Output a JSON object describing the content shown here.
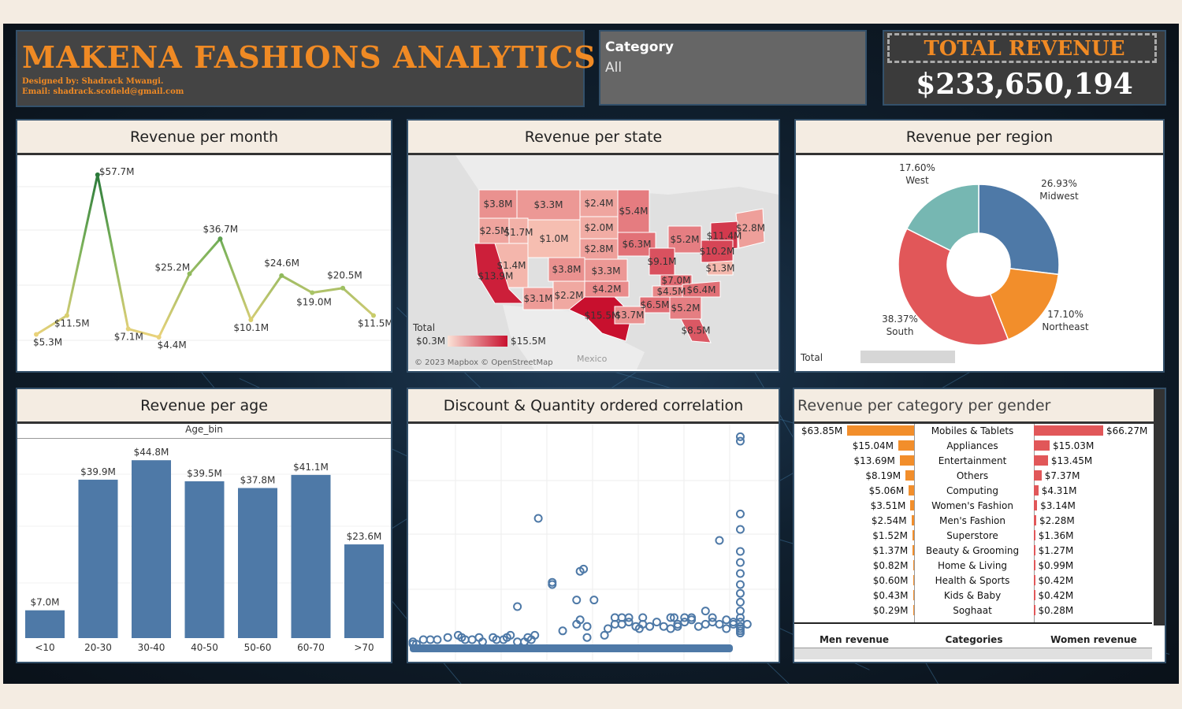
{
  "header": {
    "title": "MAKENA FASHIONS  ANALYTICS",
    "designed_by": "Designed by: Shadrack Mwangi.",
    "email": "Email: shadrack.scofield@gmail.com"
  },
  "filter": {
    "label": "Category",
    "value": "All"
  },
  "kpi": {
    "label": "TOTAL REVENUE",
    "value": "$233,650,194"
  },
  "month_panel": {
    "title": "Revenue per month",
    "chart_data": {
      "type": "line",
      "values": [
        5.3,
        11.5,
        57.7,
        7.1,
        4.4,
        25.2,
        36.7,
        10.1,
        24.6,
        19.0,
        20.5,
        11.5
      ],
      "labels": [
        "$5.3M",
        "$11.5M",
        "$57.7M",
        "$7.1M",
        "$4.4M",
        "$25.2M",
        "$36.7M",
        "$10.1M",
        "$24.6M",
        "$19.0M",
        "$20.5M",
        "$11.5M"
      ],
      "ylim": [
        0,
        60
      ]
    }
  },
  "state_panel": {
    "title": "Revenue per state",
    "state_labels": [
      "$3.8M",
      "$3.3M",
      "$2.4M",
      "$5.4M",
      "$2.8M",
      "$2.5M",
      "$1.7M",
      "$1.0M",
      "$2.0M",
      "$5.2M",
      "$11.4M",
      "$6.3M",
      "$2.8M",
      "$10.2M",
      "$9.1M",
      "$1.4M",
      "$3.8M",
      "$3.3M",
      "$1.3M",
      "$7.0M",
      "$13.9M",
      "$4.2M",
      "$4.5M",
      "$6.4M",
      "$3.1M",
      "$2.2M",
      "$6.5M",
      "$15.5M",
      "$3.7M",
      "$5.2M",
      "$8.5M"
    ],
    "legend_title": "Total",
    "legend_min": "$0.3M",
    "legend_max": "$15.5M",
    "attribution": "© 2023 Mapbox © OpenStreetMap",
    "mexico": "Mexico"
  },
  "region_panel": {
    "title": "Revenue per region",
    "chart_data": {
      "type": "pie",
      "slices": [
        {
          "name": "Midwest",
          "pct": 26.93,
          "label": "26.93%",
          "color": "#4e79a7"
        },
        {
          "name": "Northeast",
          "pct": 17.1,
          "label": "17.10%",
          "color": "#f28e2b"
        },
        {
          "name": "South",
          "pct": 38.37,
          "label": "38.37%",
          "color": "#e15759"
        },
        {
          "name": "West",
          "pct": 17.6,
          "label": "17.60%",
          "color": "#76b7b2"
        }
      ]
    },
    "legend_label": "Total"
  },
  "age_panel": {
    "title": "Revenue per age",
    "chart_data": {
      "type": "bar",
      "header": "Age_bin",
      "categories": [
        "<10",
        "20-30",
        "30-40",
        "40-50",
        "50-60",
        "60-70",
        ">70"
      ],
      "values": [
        7.0,
        39.9,
        44.8,
        39.5,
        37.8,
        41.1,
        23.6
      ],
      "labels": [
        "$7.0M",
        "$39.9M",
        "$44.8M",
        "$39.5M",
        "$37.8M",
        "$41.1M",
        "$23.6M"
      ],
      "ylim": [
        0,
        50
      ],
      "color": "#4e79a7"
    }
  },
  "scatter_panel": {
    "title": "Discount & Quantity ordered correlation",
    "chart_data": {
      "type": "scatter",
      "color": "#4e79a7",
      "xlim": [
        0,
        100
      ],
      "ylim": [
        0,
        100
      ],
      "points": [
        [
          0,
          3
        ],
        [
          0,
          4
        ],
        [
          1,
          3
        ],
        [
          3,
          5
        ],
        [
          5,
          5
        ],
        [
          7,
          5
        ],
        [
          10,
          6
        ],
        [
          13,
          7
        ],
        [
          14,
          6
        ],
        [
          15,
          5
        ],
        [
          17,
          5
        ],
        [
          19,
          6
        ],
        [
          20,
          4
        ],
        [
          23,
          6
        ],
        [
          24,
          5
        ],
        [
          26,
          5
        ],
        [
          27,
          6
        ],
        [
          28,
          7
        ],
        [
          30,
          4
        ],
        [
          32,
          4
        ],
        [
          33,
          6
        ],
        [
          30,
          20
        ],
        [
          34,
          5
        ],
        [
          35,
          7
        ],
        [
          36,
          60
        ],
        [
          40,
          30
        ],
        [
          40,
          31
        ],
        [
          43,
          9
        ],
        [
          47,
          12
        ],
        [
          48,
          14
        ],
        [
          47,
          23
        ],
        [
          48,
          36
        ],
        [
          49,
          37
        ],
        [
          50,
          6
        ],
        [
          52,
          23
        ],
        [
          50,
          11
        ],
        [
          55,
          7
        ],
        [
          56,
          10
        ],
        [
          58,
          12
        ],
        [
          60,
          12
        ],
        [
          62,
          13
        ],
        [
          64,
          11
        ],
        [
          65,
          10
        ],
        [
          66,
          12
        ],
        [
          68,
          11
        ],
        [
          70,
          13
        ],
        [
          72,
          11
        ],
        [
          74,
          10
        ],
        [
          76,
          11
        ],
        [
          78,
          13
        ],
        [
          80,
          14
        ],
        [
          82,
          11
        ],
        [
          84,
          12
        ],
        [
          86,
          13
        ],
        [
          88,
          12
        ],
        [
          90,
          10
        ],
        [
          92,
          12
        ],
        [
          84,
          18
        ],
        [
          88,
          50
        ],
        [
          94,
          8
        ],
        [
          94,
          9
        ],
        [
          94,
          10
        ],
        [
          94,
          11
        ],
        [
          94,
          13
        ],
        [
          94,
          15
        ],
        [
          94,
          18
        ],
        [
          94,
          22
        ],
        [
          94,
          26
        ],
        [
          94,
          30
        ],
        [
          94,
          35
        ],
        [
          94,
          40
        ],
        [
          94,
          45
        ],
        [
          94,
          55
        ],
        [
          94,
          62
        ],
        [
          94,
          95
        ],
        [
          94,
          97
        ],
        [
          66,
          15
        ],
        [
          74,
          15
        ],
        [
          75,
          15
        ],
        [
          78,
          15
        ],
        [
          80,
          15
        ],
        [
          86,
          15
        ],
        [
          58,
          15
        ],
        [
          60,
          15
        ],
        [
          62,
          15
        ],
        [
          96,
          12
        ],
        [
          92,
          13
        ],
        [
          90,
          14
        ],
        [
          76,
          12
        ]
      ]
    }
  },
  "gender_panel": {
    "title": "Revenue per category per gender",
    "rows": [
      {
        "cat": "Mobiles & Tablets",
        "men": 63.85,
        "men_label": "$63.85M",
        "women": 66.27,
        "women_label": "$66.27M"
      },
      {
        "cat": "Appliances",
        "men": 15.04,
        "men_label": "$15.04M",
        "women": 15.03,
        "women_label": "$15.03M"
      },
      {
        "cat": "Entertainment",
        "men": 13.69,
        "men_label": "$13.69M",
        "women": 13.45,
        "women_label": "$13.45M"
      },
      {
        "cat": "Others",
        "men": 8.19,
        "men_label": "$8.19M",
        "women": 7.37,
        "women_label": "$7.37M"
      },
      {
        "cat": "Computing",
        "men": 5.06,
        "men_label": "$5.06M",
        "women": 4.31,
        "women_label": "$4.31M"
      },
      {
        "cat": "Women's Fashion",
        "men": 3.51,
        "men_label": "$3.51M",
        "women": 3.14,
        "women_label": "$3.14M"
      },
      {
        "cat": "Men's Fashion",
        "men": 2.54,
        "men_label": "$2.54M",
        "women": 2.28,
        "women_label": "$2.28M"
      },
      {
        "cat": "Superstore",
        "men": 1.52,
        "men_label": "$1.52M",
        "women": 1.36,
        "women_label": "$1.36M"
      },
      {
        "cat": "Beauty & Grooming",
        "men": 1.37,
        "men_label": "$1.37M",
        "women": 1.27,
        "women_label": "$1.27M"
      },
      {
        "cat": "Home & Living",
        "men": 0.82,
        "men_label": "$0.82M",
        "women": 0.99,
        "women_label": "$0.99M"
      },
      {
        "cat": "Health & Sports",
        "men": 0.6,
        "men_label": "$0.60M",
        "women": 0.42,
        "women_label": "$0.42M"
      },
      {
        "cat": "Kids & Baby",
        "men": 0.43,
        "men_label": "$0.43M",
        "women": 0.42,
        "women_label": "$0.42M"
      },
      {
        "cat": "Soghaat",
        "men": 0.29,
        "men_label": "$0.29M",
        "women": 0.28,
        "women_label": "$0.28M"
      }
    ],
    "col_men": "Men revenue",
    "col_cat": "Categories",
    "col_women": "Women revenue"
  }
}
